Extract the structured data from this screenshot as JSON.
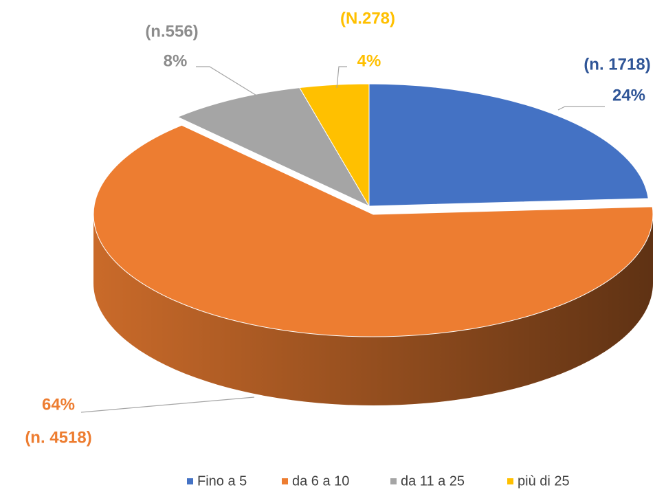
{
  "chart_data": {
    "type": "pie",
    "categories": [
      "Fino a 5",
      "da 6 a 10",
      "da 11 a 25",
      "più di 25"
    ],
    "values": [
      24,
      64,
      8,
      4
    ],
    "value_labels": [
      "24%",
      "64%",
      "8%",
      "4%"
    ],
    "count_labels": [
      "(n. 1718)",
      "(n. 4518)",
      "(n.556)",
      "(N.278)"
    ],
    "colors": [
      "#4472c4",
      "#ed7d31",
      "#a5a5a5",
      "#ffc000"
    ],
    "legend": "bottom"
  }
}
